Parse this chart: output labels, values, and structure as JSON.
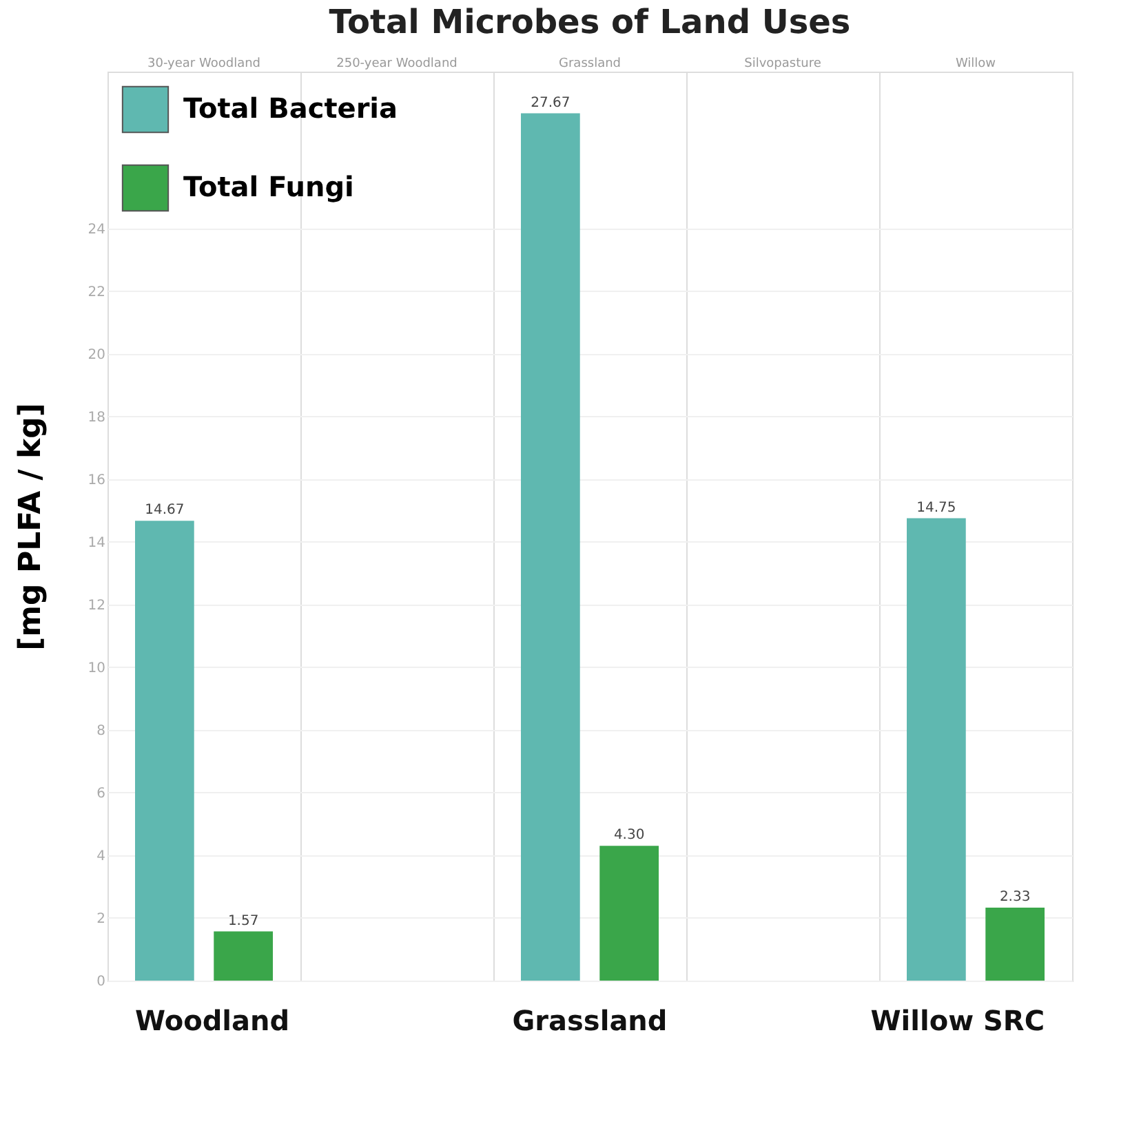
{
  "chart_data": {
    "type": "bar",
    "title": "Total Microbes of Land Uses",
    "ylabel": "[mg PLFA / kg]",
    "categories": [
      "30-year Woodland",
      "250-year Woodland",
      "Grassland",
      "Silvopasture",
      "Willow"
    ],
    "series": [
      {
        "name": "Total Bacteria",
        "color": "#5fb8b0",
        "values": [
          14.67,
          null,
          27.67,
          null,
          14.75
        ],
        "value_labels": [
          "14.67",
          null,
          "27.67",
          null,
          "14.75"
        ]
      },
      {
        "name": "Total Fungi",
        "color": "#3aa64a",
        "values": [
          1.57,
          null,
          4.3,
          null,
          2.33
        ],
        "value_labels": [
          "1.57",
          null,
          "4.30",
          null,
          "2.33"
        ]
      }
    ],
    "ylim": [
      0,
      29
    ],
    "yticks": [
      0,
      2,
      4,
      6,
      8,
      10,
      12,
      14,
      16,
      18,
      20,
      22,
      24
    ],
    "annotations": [
      "Woodland",
      "Grassland",
      "Willow SRC"
    ],
    "grid": true,
    "legend": "top left"
  }
}
